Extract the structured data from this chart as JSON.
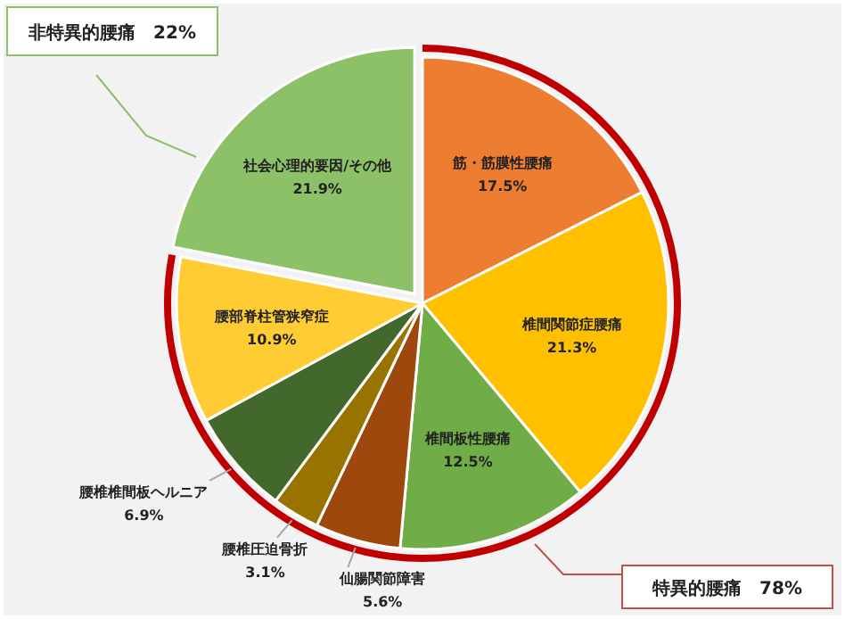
{
  "chart_data": {
    "type": "pie",
    "categories": [
      "筋・筋膜性腰痛",
      "椎間関節症腰痛",
      "椎間板性腰痛",
      "仙腸関節障害",
      "腰椎圧迫骨折",
      "腰椎椎間板ヘルニア",
      "腰部脊柱管狭窄症",
      "社会心理的要因/その他"
    ],
    "values": [
      17.5,
      21.3,
      12.5,
      5.6,
      3.1,
      6.9,
      10.9,
      21.9
    ],
    "colors": [
      "#ed7d31",
      "#ffc000",
      "#70ad47",
      "#9e480e",
      "#997300",
      "#43682b",
      "#ffcd33",
      "#8cc168"
    ],
    "value_labels": [
      "17.5%",
      "21.3%",
      "12.5%",
      "5.6%",
      "3.1%",
      "6.9%",
      "10.9%",
      "21.9%"
    ],
    "annotations": [
      "非特異的腰痛　22%",
      "特異的腰痛　78%"
    ]
  }
}
